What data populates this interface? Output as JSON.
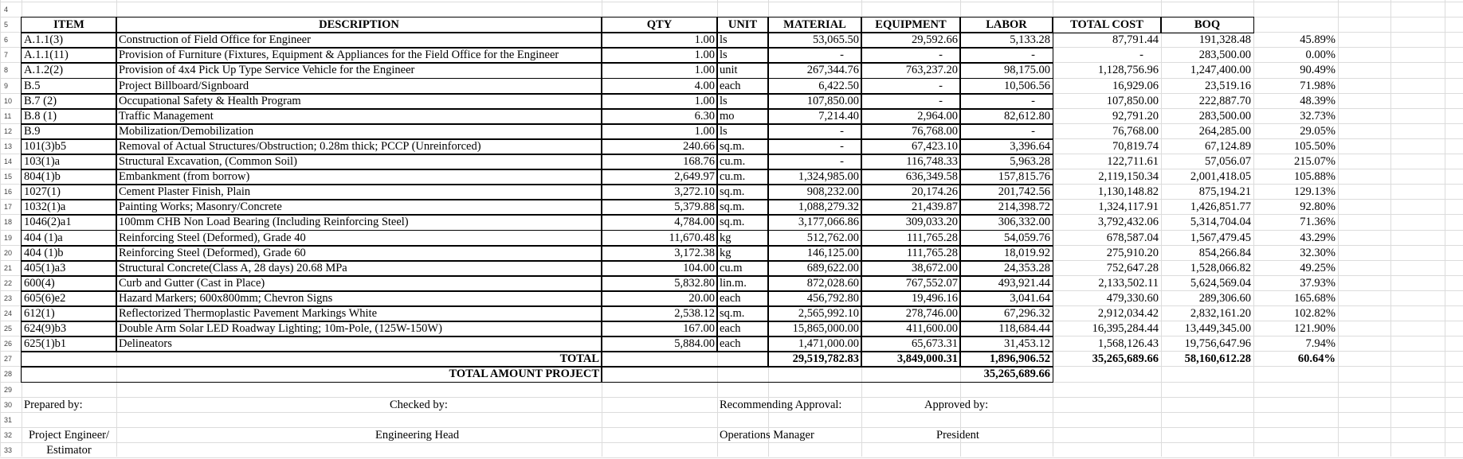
{
  "row_numbers": [
    "4",
    "5",
    "6",
    "7",
    "8",
    "9",
    "10",
    "11",
    "12",
    "13",
    "14",
    "15",
    "16",
    "17",
    "18",
    "19",
    "20",
    "21",
    "22",
    "23",
    "24",
    "25",
    "26",
    "27",
    "28",
    "29",
    "30",
    "31",
    "32",
    "33"
  ],
  "header": [
    "ITEM",
    "DESCRIPTION",
    "QTY",
    "UNIT",
    "MATERIAL",
    "EQUIPMENT",
    "LABOR",
    "TOTAL COST",
    "BOQ"
  ],
  "rows": [
    [
      "A.1.1(3)",
      "Construction of Field Office for Engineer",
      "1.00",
      "ls",
      "53,065.50",
      "29,592.66",
      "5,133.28",
      "87,791.44",
      "191,328.48",
      "45.89%"
    ],
    [
      "A.1.1(11)",
      "Provision of Furniture (Fixtures, Equipment & Appliances for the Field Office for the Engineer",
      "1.00",
      "ls",
      "-",
      "-",
      "-",
      "-",
      "283,500.00",
      "0.00%"
    ],
    [
      "A.1.2(2)",
      "Provision of 4x4 Pick Up Type Service Vehicle for the Engineer",
      "1.00",
      "unit",
      "267,344.76",
      "763,237.20",
      "98,175.00",
      "1,128,756.96",
      "1,247,400.00",
      "90.49%"
    ],
    [
      "B.5",
      "Project Billboard/Signboard",
      "4.00",
      "each",
      "6,422.50",
      "-",
      "10,506.56",
      "16,929.06",
      "23,519.16",
      "71.98%"
    ],
    [
      "B.7 (2)",
      "Occupational Safety & Health Program",
      "1.00",
      "ls",
      "107,850.00",
      "-",
      "-",
      "107,850.00",
      "222,887.70",
      "48.39%"
    ],
    [
      "B.8 (1)",
      "Traffic Management",
      "6.30",
      "mo",
      "7,214.40",
      "2,964.00",
      "82,612.80",
      "92,791.20",
      "283,500.00",
      "32.73%"
    ],
    [
      "B.9",
      "Mobilization/Demobilization",
      "1.00",
      "ls",
      "-",
      "76,768.00",
      "-",
      "76,768.00",
      "264,285.00",
      "29.05%"
    ],
    [
      "101(3)b5",
      "Removal of Actual Structures/Obstruction; 0.28m thick; PCCP (Unreinforced)",
      "240.66",
      "sq.m.",
      "-",
      "67,423.10",
      "3,396.64",
      "70,819.74",
      "67,124.89",
      "105.50%"
    ],
    [
      "103(1)a",
      "Structural Excavation, (Common Soil)",
      "168.76",
      "cu.m.",
      "-",
      "116,748.33",
      "5,963.28",
      "122,711.61",
      "57,056.07",
      "215.07%"
    ],
    [
      "804(1)b",
      "Embankment (from borrow)",
      "2,649.97",
      "cu.m.",
      "1,324,985.00",
      "636,349.58",
      "157,815.76",
      "2,119,150.34",
      "2,001,418.05",
      "105.88%"
    ],
    [
      "1027(1)",
      "Cement Plaster Finish, Plain",
      "3,272.10",
      "sq.m.",
      "908,232.00",
      "20,174.26",
      "201,742.56",
      "1,130,148.82",
      "875,194.21",
      "129.13%"
    ],
    [
      "1032(1)a",
      "Painting Works; Masonry/Concrete",
      "5,379.88",
      "sq.m.",
      "1,088,279.32",
      "21,439.87",
      "214,398.72",
      "1,324,117.91",
      "1,426,851.77",
      "92.80%"
    ],
    [
      "1046(2)a1",
      "100mm CHB Non Load Bearing (Including Reinforcing Steel)",
      "4,784.00",
      "sq.m.",
      "3,177,066.86",
      "309,033.20",
      "306,332.00",
      "3,792,432.06",
      "5,314,704.04",
      "71.36%"
    ],
    [
      "404 (1)a",
      "Reinforcing Steel (Deformed), Grade 40",
      "11,670.48",
      "kg",
      "512,762.00",
      "111,765.28",
      "54,059.76",
      "678,587.04",
      "1,567,479.45",
      "43.29%"
    ],
    [
      "404 (1)b",
      "Reinforcing Steel (Deformed), Grade 60",
      "3,172.38",
      "kg",
      "146,125.00",
      "111,765.28",
      "18,019.92",
      "275,910.20",
      "854,266.84",
      "32.30%"
    ],
    [
      "405(1)a3",
      "Structural Concrete(Class A, 28 days) 20.68 MPa",
      "104.00",
      "cu.m",
      "689,622.00",
      "38,672.00",
      "24,353.28",
      "752,647.28",
      "1,528,066.82",
      "49.25%"
    ],
    [
      "600(4)",
      "Curb and Gutter (Cast in Place)",
      "5,832.80",
      "lin.m.",
      "872,028.60",
      "767,552.07",
      "493,921.44",
      "2,133,502.11",
      "5,624,569.04",
      "37.93%"
    ],
    [
      "605(6)e2",
      "Hazard Markers; 600x800mm; Chevron Signs",
      "20.00",
      "each",
      "456,792.80",
      "19,496.16",
      "3,041.64",
      "479,330.60",
      "289,306.60",
      "165.68%"
    ],
    [
      "612(1)",
      "Reflectorized Thermoplastic Pavement Markings White",
      "2,538.12",
      "sq.m.",
      "2,565,992.10",
      "278,746.00",
      "67,296.32",
      "2,912,034.42",
      "2,832,161.20",
      "102.82%"
    ],
    [
      "624(9)b3",
      "Double Arm Solar LED Roadway Lighting; 10m-Pole, (125W-150W)",
      "167.00",
      "each",
      "15,865,000.00",
      "411,600.00",
      "118,684.44",
      "16,395,284.44",
      "13,449,345.00",
      "121.90%"
    ],
    [
      "625(1)b1",
      "Delineators",
      "5,884.00",
      "each",
      "1,471,000.00",
      "65,673.31",
      "31,453.12",
      "1,568,126.43",
      "19,756,647.96",
      "7.94%"
    ]
  ],
  "total": {
    "label": "TOTAL",
    "material": "29,519,782.83",
    "equipment": "3,849,000.31",
    "labor": "1,896,906.52",
    "total_cost": "35,265,689.66",
    "boq": "58,160,612.28",
    "pct": "60.64%"
  },
  "total_project": {
    "label": "TOTAL AMOUNT PROJECT",
    "value": "35,265,689.66"
  },
  "signatures": {
    "prepared_by": "Prepared by:",
    "checked_by": "Checked by:",
    "recommending": "Recommending Approval:",
    "approved_by": "Approved by:",
    "prepared_title_1": "Project Engineer/",
    "prepared_title_2": "Estimator",
    "checked_title": "Engineering Head",
    "recommending_title": "Operations Manager",
    "approved_title": "President"
  }
}
